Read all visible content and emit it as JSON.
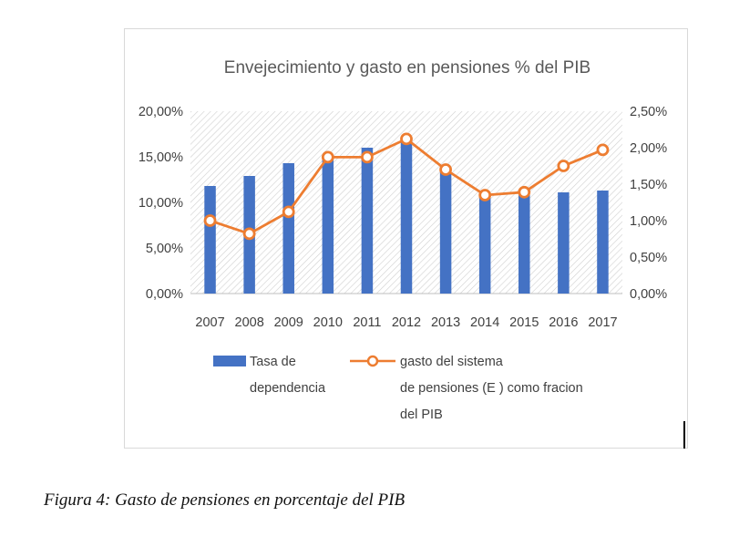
{
  "chart_data": {
    "type": "bar",
    "title": "Envejecimiento y gasto en pensiones % del PIB",
    "categories": [
      "2007",
      "2008",
      "2009",
      "2010",
      "2011",
      "2012",
      "2013",
      "2014",
      "2015",
      "2016",
      "2017"
    ],
    "series": [
      {
        "name": "Tasa de dependencia",
        "type": "bar",
        "axis": "left",
        "color": "#4472c4",
        "values": [
          11.8,
          12.9,
          14.3,
          15.0,
          16.0,
          16.8,
          13.7,
          10.8,
          11.0,
          11.1,
          11.3
        ]
      },
      {
        "name": "gasto del sistema de pensiones (E ) como fracion del PIB",
        "type": "line",
        "axis": "right",
        "color": "#ed7d31",
        "values": [
          1.0,
          0.82,
          1.12,
          1.87,
          1.87,
          2.12,
          1.7,
          1.35,
          1.39,
          1.75,
          1.97
        ]
      }
    ],
    "y_left": {
      "min": 0,
      "max": 20,
      "step": 5,
      "tick_labels": [
        "0,00%",
        "5,00%",
        "10,00%",
        "15,00%",
        "20,00%"
      ]
    },
    "y_right": {
      "min": 0,
      "max": 2.5,
      "step": 0.5,
      "tick_labels": [
        "0,00%",
        "0,50%",
        "1,00%",
        "1,50%",
        "2,00%",
        "2,50%"
      ]
    },
    "grid": false,
    "plot_background": "hatched",
    "legend_position": "bottom"
  },
  "legend": {
    "bar_lines": [
      "Tasa de",
      "dependencia"
    ],
    "line_lines": [
      "gasto del sistema",
      "de pensiones (E ) como fracion",
      "del PIB"
    ]
  },
  "caption": "Figura 4: Gasto de pensiones en porcentaje del PIB"
}
